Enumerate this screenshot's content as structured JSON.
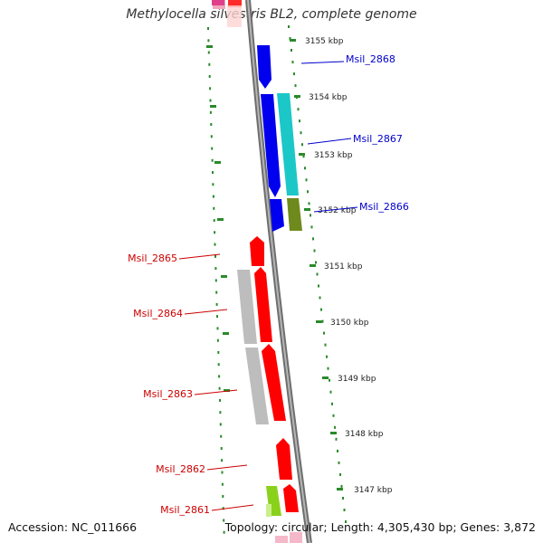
{
  "title": "Methylocella silvestris BL2, complete genome",
  "footer": {
    "accession": "Accession: NC_011666",
    "topology": "Topology: circular; Length: 4,305,430 bp; Genes: 3,872"
  },
  "ticks": [
    "3155 kbp",
    "3154 kbp",
    "3153 kbp",
    "3152 kbp",
    "3151 kbp",
    "3150 kbp",
    "3149 kbp",
    "3148 kbp",
    "3147 kbp"
  ],
  "genes": [
    {
      "id": "Msil_2868",
      "strand": "reverse",
      "color": "#0000cc"
    },
    {
      "id": "Msil_2867",
      "strand": "reverse",
      "color": "#0000cc"
    },
    {
      "id": "Msil_2866",
      "strand": "reverse",
      "color": "#0000cc"
    },
    {
      "id": "Msil_2865",
      "strand": "forward",
      "color": "#cc0000"
    },
    {
      "id": "Msil_2864",
      "strand": "forward",
      "color": "#cc0000"
    },
    {
      "id": "Msil_2863",
      "strand": "forward",
      "color": "#cc0000"
    },
    {
      "id": "Msil_2862",
      "strand": "forward",
      "color": "#cc0000"
    },
    {
      "id": "Msil_2861",
      "strand": "forward",
      "color": "#cc0000"
    }
  ],
  "colors": {
    "backbone": "#808080",
    "forward_cds": "#ff0000",
    "reverse_cds": "#0000ff",
    "cyan_feature": "#1cc7c7",
    "olive_feature": "#6f8a1c",
    "gray_feature": "#bdbdbd",
    "lime_feature": "#8ad11c",
    "pink_feature": "#f0a0b0",
    "magenta_feature": "#e0408a",
    "tick_green": "#2a8a2a"
  }
}
